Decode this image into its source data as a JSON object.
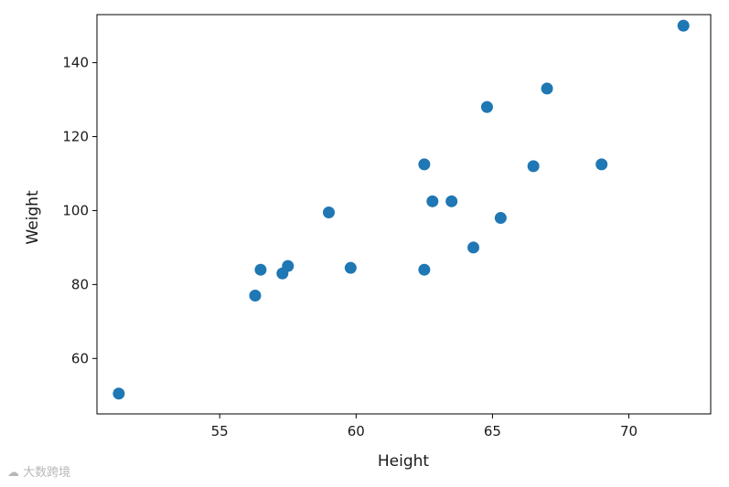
{
  "chart_data": {
    "type": "scatter",
    "xlabel": "Height",
    "ylabel": "Weight",
    "xlim": [
      50.5,
      73.0
    ],
    "ylim": [
      45,
      153
    ],
    "xticks": [
      55,
      60,
      65,
      70
    ],
    "yticks": [
      60,
      80,
      100,
      120,
      140
    ],
    "grid": false,
    "marker_color": "#1f77b4",
    "points": [
      {
        "x": 51.3,
        "y": 50.5
      },
      {
        "x": 56.3,
        "y": 77.0
      },
      {
        "x": 56.5,
        "y": 84.0
      },
      {
        "x": 57.3,
        "y": 83.0
      },
      {
        "x": 57.5,
        "y": 85.0
      },
      {
        "x": 59.0,
        "y": 99.5
      },
      {
        "x": 59.8,
        "y": 84.5
      },
      {
        "x": 62.5,
        "y": 84.0
      },
      {
        "x": 62.5,
        "y": 112.5
      },
      {
        "x": 62.8,
        "y": 102.5
      },
      {
        "x": 63.5,
        "y": 102.5
      },
      {
        "x": 64.3,
        "y": 90.0
      },
      {
        "x": 64.8,
        "y": 128.0
      },
      {
        "x": 65.3,
        "y": 98.0
      },
      {
        "x": 66.5,
        "y": 112.0
      },
      {
        "x": 67.0,
        "y": 133.0
      },
      {
        "x": 69.0,
        "y": 112.5
      },
      {
        "x": 72.0,
        "y": 150.0
      }
    ]
  },
  "watermark": {
    "text": "大数跨境"
  }
}
